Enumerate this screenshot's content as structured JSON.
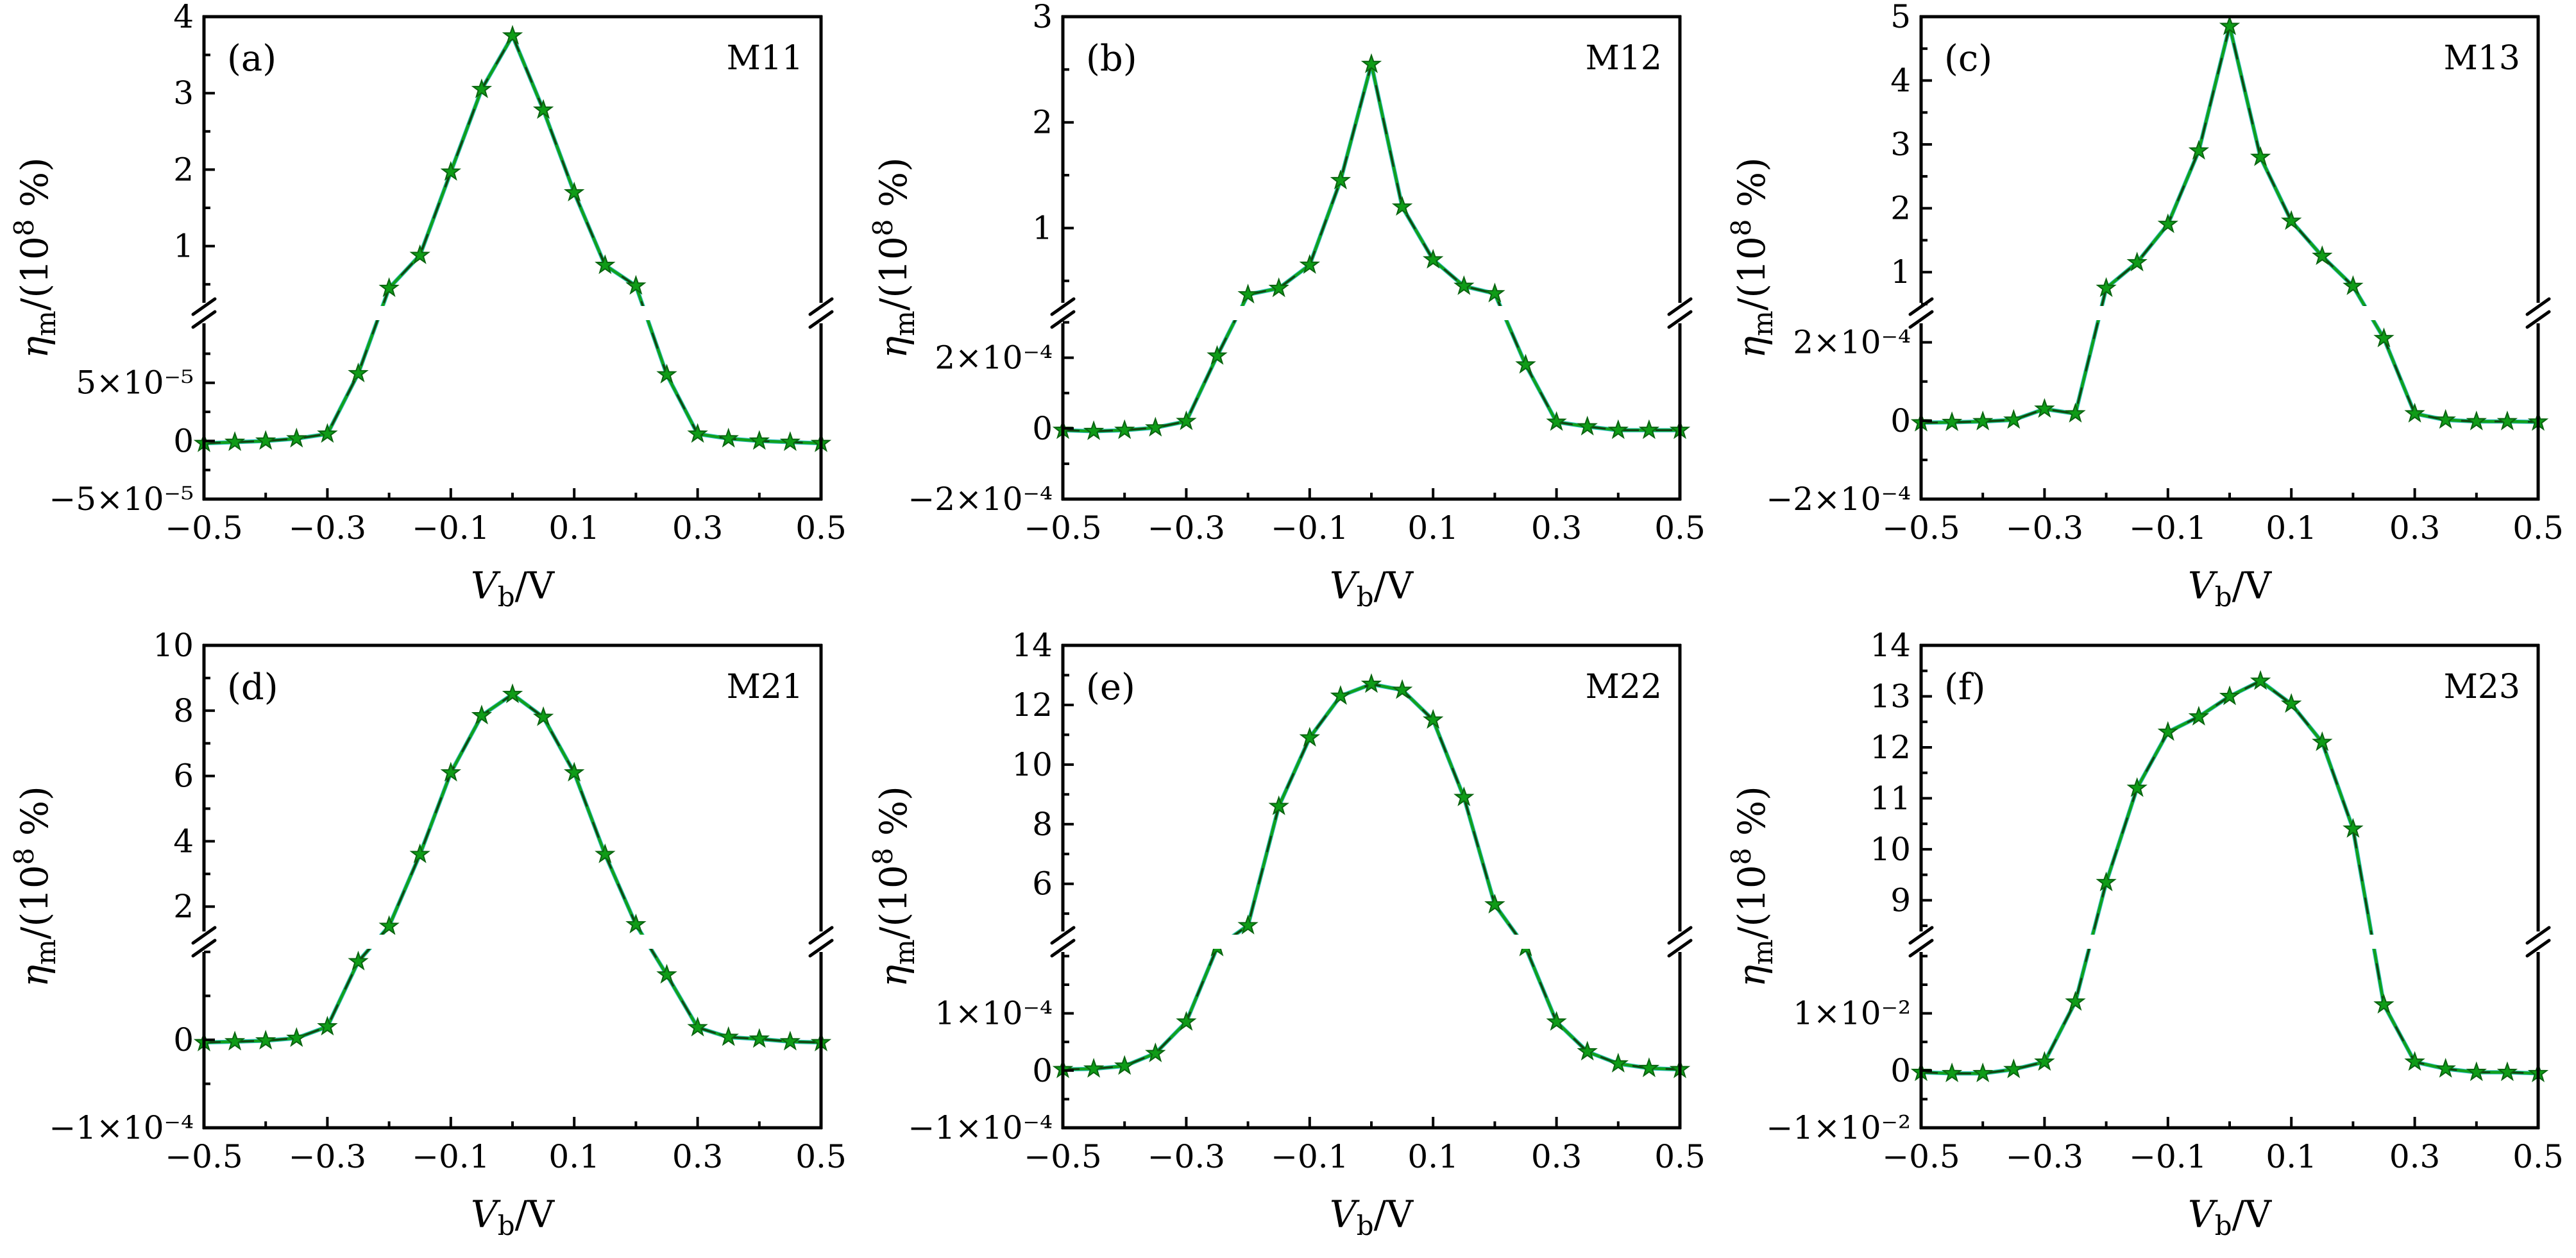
{
  "figure": {
    "background": "#ffffff",
    "axis_color": "#000000",
    "line_color": "#12a01b",
    "line_dash_color": "#133d13",
    "underlay_color": "#2ec0c4",
    "marker_color": "#0f9c17",
    "marker_edge_color": "#0a6410",
    "marker_shape": "star"
  },
  "axes_labels": {
    "x": {
      "sym": "V",
      "sub": "b",
      "rest": "/V",
      "text": "V_b/V"
    },
    "y": {
      "sym": "η",
      "sub": "m",
      "mid": "/(10",
      "exp": "8",
      "rest": " %)",
      "text": "η_m/(10^8 %)"
    }
  },
  "x_axis": {
    "range": [
      -0.5,
      0.5
    ],
    "major_ticks": [
      -0.5,
      -0.3,
      -0.1,
      0.1,
      0.3,
      0.5
    ],
    "major_labels": [
      "−0.5",
      "−0.3",
      "−0.1",
      "0.1",
      "0.3",
      "0.5"
    ],
    "minor_ticks": [
      -0.4,
      -0.2,
      0,
      0.2,
      0.4
    ]
  },
  "chart_data": [
    {
      "type": "line",
      "panel_letter": "(a)",
      "series_label": "M11",
      "xlabel": "V_b/V",
      "ylabel": "η_m/(10^8 %)",
      "axis_break": true,
      "x": [
        -0.5,
        -0.45,
        -0.4,
        -0.35,
        -0.3,
        -0.25,
        -0.2,
        -0.15,
        -0.1,
        -0.05,
        0,
        0.05,
        0.1,
        0.15,
        0.2,
        0.25,
        0.3,
        0.35,
        0.4,
        0.45,
        0.5
      ],
      "y": [
        -2e-06,
        -1e-06,
        0,
        2e-06,
        6e-06,
        5.8e-05,
        0.45,
        0.88,
        1.97,
        3.05,
        3.75,
        2.78,
        1.7,
        0.75,
        0.48,
        5.7e-05,
        6e-06,
        2e-06,
        0,
        -1e-06,
        -2e-06
      ],
      "upper_axis": {
        "range": [
          0.2,
          4
        ],
        "tick_values": [
          1,
          2,
          3,
          4
        ],
        "tick_labels": [
          "1",
          "2",
          "3",
          "4"
        ],
        "minor_ticks": [
          0.5,
          1.5,
          2.5,
          3.5
        ]
      },
      "lower_axis": {
        "range": [
          -5e-05,
          0.000105
        ],
        "tick_values": [
          5e-05,
          0,
          -5e-05
        ],
        "tick_labels": [
          "5×10⁻⁵",
          "0",
          "−5×10⁻⁵"
        ],
        "minor_ticks": [
          7.5e-05,
          2.5e-05,
          -2.5e-05
        ]
      }
    },
    {
      "type": "line",
      "panel_letter": "(b)",
      "series_label": "M12",
      "xlabel": "V_b/V",
      "ylabel": "η_m/(10^8 %)",
      "axis_break": true,
      "x": [
        -0.5,
        -0.45,
        -0.4,
        -0.35,
        -0.3,
        -0.25,
        -0.2,
        -0.15,
        -0.1,
        -0.05,
        0,
        0.05,
        0.1,
        0.15,
        0.2,
        0.25,
        0.3,
        0.35,
        0.4,
        0.45,
        0.5
      ],
      "y": [
        -5e-06,
        -8e-06,
        -5e-06,
        2e-06,
        2e-05,
        0.000205,
        0.37,
        0.43,
        0.65,
        1.45,
        2.55,
        1.2,
        0.7,
        0.45,
        0.38,
        0.00018,
        1.8e-05,
        5e-06,
        -5e-06,
        -5e-06,
        -5e-06
      ],
      "upper_axis": {
        "range": [
          0.25,
          3
        ],
        "tick_values": [
          1,
          2,
          3
        ],
        "tick_labels": [
          "1",
          "2",
          "3"
        ],
        "minor_ticks": [
          0.5,
          1.5,
          2.5
        ]
      },
      "lower_axis": {
        "range": [
          -0.0002,
          0.00031
        ],
        "tick_values": [
          0.0002,
          0,
          -0.0002
        ],
        "tick_labels": [
          "2×10⁻⁴",
          "0",
          "−2×10⁻⁴"
        ],
        "minor_ticks": [
          0.0003,
          0.0001,
          -0.0001
        ]
      }
    },
    {
      "type": "line",
      "panel_letter": "(c)",
      "series_label": "M13",
      "xlabel": "V_b/V",
      "ylabel": "η_m/(10^8 %)",
      "axis_break": true,
      "x": [
        -0.5,
        -0.45,
        -0.4,
        -0.35,
        -0.3,
        -0.25,
        -0.2,
        -0.15,
        -0.1,
        -0.05,
        0,
        0.05,
        0.1,
        0.15,
        0.2,
        0.25,
        0.3,
        0.35,
        0.4,
        0.45,
        0.5
      ],
      "y": [
        -5e-06,
        -4e-06,
        -2e-06,
        2e-06,
        3e-05,
        1.8e-05,
        0.75,
        1.15,
        1.75,
        2.9,
        4.85,
        2.8,
        1.8,
        1.25,
        0.78,
        0.00021,
        1.8e-05,
        2e-06,
        -2e-06,
        -2e-06,
        -3e-06
      ],
      "upper_axis": {
        "range": [
          0.45,
          5
        ],
        "tick_values": [
          1,
          2,
          3,
          4,
          5
        ],
        "tick_labels": [
          "1",
          "2",
          "3",
          "4",
          "5"
        ],
        "minor_ticks": [
          0.5,
          1.5,
          2.5,
          3.5,
          4.5
        ]
      },
      "lower_axis": {
        "range": [
          -0.0002,
          0.00026
        ],
        "tick_values": [
          0.0002,
          0,
          -0.0002
        ],
        "tick_labels": [
          "2×10⁻⁴",
          "0",
          "−2×10⁻⁴"
        ],
        "minor_ticks": [
          0.0001,
          -0.0001
        ]
      }
    },
    {
      "type": "line",
      "panel_letter": "(d)",
      "series_label": "M21",
      "xlabel": "V_b/V",
      "ylabel": "η_m/(10^8 %)",
      "axis_break": true,
      "x": [
        -0.5,
        -0.45,
        -0.4,
        -0.35,
        -0.3,
        -0.25,
        -0.2,
        -0.15,
        -0.1,
        -0.05,
        0,
        0.05,
        0.1,
        0.15,
        0.2,
        0.25,
        0.3,
        0.35,
        0.4,
        0.45,
        0.5
      ],
      "y": [
        -3e-06,
        -2e-06,
        -1e-06,
        2e-06,
        1.5e-05,
        8.9e-05,
        1.4,
        3.6,
        6.1,
        7.85,
        8.5,
        7.8,
        6.1,
        3.6,
        1.45,
        7.4e-05,
        1.4e-05,
        3e-06,
        1e-06,
        -2e-06,
        -3e-06
      ],
      "upper_axis": {
        "range": [
          1.1,
          10
        ],
        "tick_values": [
          2,
          4,
          6,
          8,
          10
        ],
        "tick_labels": [
          "2",
          "4",
          "6",
          "8",
          "10"
        ],
        "minor_ticks": [
          3,
          5,
          7,
          9
        ]
      },
      "lower_axis": {
        "range": [
          -0.0001,
          0.000105
        ],
        "tick_values": [
          0,
          -0.0001
        ],
        "tick_labels": [
          "0",
          "−1×10⁻⁴"
        ],
        "minor_ticks": [
          0.0001,
          5e-05,
          -5e-05
        ]
      }
    },
    {
      "type": "line",
      "panel_letter": "(e)",
      "series_label": "M22",
      "xlabel": "V_b/V",
      "ylabel": "η_m/(10^8 %)",
      "axis_break": true,
      "x": [
        -0.5,
        -0.45,
        -0.4,
        -0.35,
        -0.3,
        -0.25,
        -0.2,
        -0.15,
        -0.1,
        -0.05,
        0,
        0.05,
        0.1,
        0.15,
        0.2,
        0.25,
        0.3,
        0.35,
        0.4,
        0.45,
        0.5
      ],
      "y": [
        2e-06,
        3e-06,
        8e-06,
        3e-05,
        8.5e-05,
        0.002,
        4.6,
        8.6,
        10.9,
        12.3,
        12.7,
        12.5,
        11.5,
        8.9,
        5.3,
        0.002,
        8.5e-05,
        3.3e-05,
        1.2e-05,
        4e-06,
        2e-06
      ],
      "upper_axis": {
        "range": [
          4.25,
          14
        ],
        "tick_values": [
          6,
          8,
          10,
          12,
          14
        ],
        "tick_labels": [
          "6",
          "8",
          "10",
          "12",
          "14"
        ],
        "minor_ticks": [
          5,
          7,
          9,
          11,
          13
        ]
      },
      "lower_axis": {
        "range": [
          -0.0001,
          0.000215
        ],
        "tick_values": [
          0.0001,
          0,
          -0.0001
        ],
        "tick_labels": [
          "1×10⁻⁴",
          "0",
          "−1×10⁻⁴"
        ],
        "minor_ticks": [
          0.0002,
          0.00015,
          5e-05,
          -5e-05
        ]
      }
    },
    {
      "type": "line",
      "panel_letter": "(f)",
      "series_label": "M23",
      "xlabel": "V_b/V",
      "ylabel": "η_m/(10^8 %)",
      "axis_break": true,
      "x": [
        -0.5,
        -0.45,
        -0.4,
        -0.35,
        -0.3,
        -0.25,
        -0.2,
        -0.15,
        -0.1,
        -0.05,
        0,
        0.05,
        0.1,
        0.15,
        0.2,
        0.25,
        0.3,
        0.35,
        0.4,
        0.45,
        0.5
      ],
      "y": [
        -0.0003,
        -0.0005,
        -0.0005,
        0.0002,
        0.0015,
        0.012,
        9.35,
        11.2,
        12.3,
        12.6,
        13.0,
        13.3,
        12.85,
        12.1,
        10.4,
        0.0115,
        0.0015,
        0.0003,
        -0.0003,
        -0.0003,
        -0.0005
      ],
      "upper_axis": {
        "range": [
          8.3,
          14
        ],
        "tick_values": [
          9,
          10,
          11,
          12,
          13,
          14
        ],
        "tick_labels": [
          "9",
          "10",
          "11",
          "12",
          "13",
          "14"
        ],
        "minor_ticks": [
          8.5,
          9.5,
          10.5,
          11.5,
          12.5,
          13.5
        ]
      },
      "lower_axis": {
        "range": [
          -0.01,
          0.0215
        ],
        "tick_values": [
          0.01,
          0,
          -0.01
        ],
        "tick_labels": [
          "1×10⁻²",
          "0",
          "−1×10⁻²"
        ],
        "minor_ticks": [
          0.02,
          0.015,
          0.005,
          -0.005
        ]
      }
    }
  ]
}
